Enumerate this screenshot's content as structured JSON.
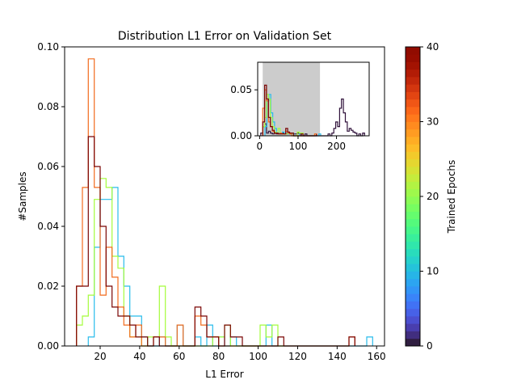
{
  "figure": {
    "background": "#ffffff"
  },
  "chart_data": [
    {
      "type": "step-histogram",
      "title": "Distribution L1 Error on Validation Set",
      "xlabel": "L1 Error",
      "ylabel": "#Samples",
      "xlim": [
        2,
        164
      ],
      "ylim": [
        0,
        0.1
      ],
      "xticks": [
        20,
        40,
        60,
        80,
        100,
        120,
        140,
        160
      ],
      "yticks": [
        0.0,
        0.02,
        0.04,
        0.06,
        0.08,
        0.1
      ],
      "ytick_labels": [
        "0.00",
        "0.02",
        "0.04",
        "0.06",
        "0.08",
        "0.10"
      ],
      "series": [
        {
          "epoch": 10,
          "color": "#28bceb",
          "edges": [
            14,
            17,
            20,
            23,
            26,
            29,
            32,
            35,
            38,
            41,
            44,
            47,
            50,
            53,
            56,
            59,
            62,
            65,
            68,
            71,
            74,
            77,
            80,
            83,
            86,
            89,
            92,
            95,
            98,
            101,
            104,
            107,
            110,
            113,
            116,
            119,
            122,
            125,
            128,
            131,
            134,
            137,
            140,
            143,
            146,
            149,
            152,
            155,
            158
          ],
          "values": [
            0.003,
            0.033,
            0.049,
            0.049,
            0.053,
            0.03,
            0.02,
            0.01,
            0.01,
            0.003,
            0,
            0,
            0.003,
            0,
            0,
            0.007,
            0,
            0,
            0.003,
            0,
            0.007,
            0,
            0.003,
            0,
            0.003,
            0,
            0,
            0,
            0,
            0,
            0.007,
            0,
            0,
            0,
            0,
            0,
            0,
            0,
            0,
            0,
            0,
            0,
            0,
            0,
            0,
            0,
            0,
            0.003
          ]
        },
        {
          "epoch": 22,
          "color": "#a4fc3b",
          "edges": [
            8,
            11,
            14,
            17,
            20,
            23,
            26,
            29,
            32,
            35,
            38,
            41,
            44,
            47,
            50,
            53,
            56,
            59,
            62,
            65,
            68,
            71,
            74,
            77,
            80,
            83,
            86,
            89,
            92,
            95,
            98,
            101,
            104,
            107,
            110,
            113
          ],
          "values": [
            0.007,
            0.01,
            0.017,
            0.049,
            0.056,
            0.053,
            0.03,
            0.026,
            0.01,
            0.003,
            0.003,
            0,
            0.003,
            0.003,
            0.02,
            0.003,
            0,
            0,
            0,
            0,
            0,
            0,
            0,
            0.003,
            0.003,
            0.007,
            0,
            0,
            0,
            0,
            0,
            0.007,
            0.003,
            0.007,
            0
          ]
        },
        {
          "epoch": 31,
          "color": "#f26b1d",
          "edges": [
            8,
            11,
            14,
            17,
            20,
            23,
            26,
            29,
            32,
            35,
            38,
            41,
            44,
            47,
            50,
            53,
            56,
            59,
            62,
            65,
            68,
            71,
            74,
            77,
            80,
            83,
            86,
            89,
            92,
            95,
            98,
            101,
            104,
            107,
            110,
            113,
            116,
            119,
            122,
            125,
            128,
            131,
            134,
            137,
            140,
            143,
            146,
            149
          ],
          "values": [
            0.02,
            0.053,
            0.096,
            0.053,
            0.017,
            0.033,
            0.023,
            0.013,
            0.007,
            0.003,
            0.007,
            0,
            0,
            0.003,
            0.003,
            0,
            0,
            0.007,
            0,
            0,
            0.01,
            0.007,
            0.003,
            0.003,
            0,
            0,
            0,
            0,
            0,
            0,
            0,
            0,
            0,
            0,
            0,
            0,
            0,
            0,
            0,
            0,
            0,
            0,
            0,
            0,
            0,
            0,
            0.003
          ]
        },
        {
          "epoch": 40,
          "color": "#7a0403",
          "edges": [
            8,
            11,
            14,
            17,
            20,
            23,
            26,
            29,
            32,
            35,
            38,
            41,
            44,
            47,
            50,
            53,
            56,
            59,
            62,
            65,
            68,
            71,
            74,
            77,
            80,
            83,
            86,
            89,
            92,
            95,
            98,
            101,
            104,
            107,
            110,
            113,
            116,
            119,
            122,
            125,
            128,
            131,
            134,
            137,
            140,
            143,
            146,
            149
          ],
          "values": [
            0.02,
            0.02,
            0.07,
            0.06,
            0.04,
            0.02,
            0.013,
            0.01,
            0.01,
            0.007,
            0.003,
            0.003,
            0,
            0.003,
            0,
            0,
            0,
            0,
            0,
            0,
            0.013,
            0.01,
            0.003,
            0.003,
            0,
            0.007,
            0.003,
            0.003,
            0,
            0,
            0,
            0,
            0,
            0,
            0.003,
            0,
            0,
            0,
            0,
            0,
            0,
            0,
            0,
            0,
            0,
            0,
            0.003
          ]
        }
      ]
    },
    {
      "type": "step-histogram",
      "role": "inset",
      "xlim": [
        -5,
        285
      ],
      "ylim": [
        0,
        0.08
      ],
      "xticks": [
        0,
        100,
        200
      ],
      "yticks": [
        0.0,
        0.05
      ],
      "ytick_labels": [
        "0.00",
        "0.05"
      ],
      "highlight_span": [
        8,
        157
      ],
      "highlight_color": "#cccccc",
      "series": [
        {
          "epoch": 1,
          "color": "#30123b",
          "edges": [
            3,
            8,
            13,
            18,
            23,
            28,
            33,
            38,
            43,
            48,
            53,
            58,
            63,
            68,
            73,
            78,
            83,
            88,
            93,
            98,
            103,
            108,
            113,
            118,
            123,
            128,
            133,
            138,
            143,
            148,
            153,
            158,
            163,
            168,
            173,
            178,
            183,
            188,
            193,
            198,
            203,
            208,
            213,
            218,
            223,
            228,
            233,
            238,
            243,
            248,
            253,
            258,
            263,
            268,
            273
          ],
          "values": [
            0.003,
            0.01,
            0.013,
            0.003,
            0.005,
            0.003,
            0.002,
            0.003,
            0.002,
            0.003,
            0.002,
            0.003,
            0.002,
            0.002,
            0.003,
            0.002,
            0.003,
            0.002,
            0.002,
            0.003,
            0.002,
            0,
            0,
            0.002,
            0,
            0,
            0,
            0,
            0,
            0,
            0,
            0,
            0,
            0,
            0,
            0.002,
            0,
            0.003,
            0.008,
            0.015,
            0.01,
            0.03,
            0.04,
            0.025,
            0.015,
            0.005,
            0.008,
            0.006,
            0.004,
            0.003,
            0,
            0.002,
            0,
            0.003
          ]
        },
        {
          "epoch": 10,
          "color": "#28bceb",
          "edges": [
            14,
            19,
            24,
            29,
            34,
            39,
            44,
            49,
            54,
            59,
            64,
            69,
            74,
            79,
            84,
            89,
            94,
            99,
            104,
            109,
            114,
            119,
            124,
            129,
            134,
            139,
            144,
            149,
            154,
            159
          ],
          "values": [
            0.01,
            0.038,
            0.045,
            0.025,
            0.015,
            0.008,
            0.003,
            0.003,
            0.002,
            0.004,
            0.002,
            0.003,
            0.002,
            0.002,
            0.003,
            0,
            0,
            0,
            0.003,
            0,
            0,
            0,
            0,
            0,
            0,
            0,
            0,
            0,
            0.002
          ]
        },
        {
          "epoch": 22,
          "color": "#a4fc3b",
          "edges": [
            8,
            13,
            18,
            23,
            28,
            33,
            38,
            43,
            48,
            53,
            58,
            63,
            68,
            73,
            78,
            83,
            88,
            93,
            98,
            103,
            108,
            113
          ],
          "values": [
            0.01,
            0.02,
            0.045,
            0.04,
            0.02,
            0.01,
            0.004,
            0.003,
            0.008,
            0.003,
            0.002,
            0.002,
            0.002,
            0.003,
            0.003,
            0.003,
            0,
            0,
            0.004,
            0.003,
            0.003
          ]
        },
        {
          "epoch": 31,
          "color": "#f26b1d",
          "edges": [
            8,
            13,
            18,
            23,
            28,
            33,
            38,
            43,
            48,
            53,
            58,
            63,
            68,
            73,
            78,
            83,
            88,
            93,
            98,
            103,
            108,
            113,
            118,
            123,
            128,
            133,
            138,
            143,
            148
          ],
          "values": [
            0.03,
            0.05,
            0.038,
            0.015,
            0.01,
            0.005,
            0.003,
            0.003,
            0.002,
            0.003,
            0.002,
            0.002,
            0.005,
            0.003,
            0.002,
            0,
            0,
            0,
            0,
            0,
            0,
            0,
            0,
            0,
            0,
            0,
            0,
            0.002
          ]
        },
        {
          "epoch": 40,
          "color": "#7a0403",
          "edges": [
            8,
            13,
            18,
            23,
            28,
            33,
            38,
            43,
            48,
            53,
            58,
            63,
            68,
            73,
            78,
            83,
            88,
            93,
            98,
            103,
            108,
            113,
            118,
            123,
            128,
            133,
            138,
            143,
            148
          ],
          "values": [
            0.015,
            0.055,
            0.04,
            0.02,
            0.01,
            0.006,
            0.003,
            0.003,
            0.002,
            0.002,
            0.002,
            0.002,
            0.008,
            0.004,
            0.003,
            0.003,
            0,
            0,
            0,
            0,
            0.002,
            0,
            0,
            0,
            0,
            0,
            0,
            0,
            0.002
          ]
        }
      ]
    }
  ],
  "colorbar": {
    "label": "Trained Epochs",
    "range": [
      0,
      40
    ],
    "ticks": [
      0,
      10,
      20,
      30,
      40
    ],
    "colormap": "turbo",
    "steps": 40
  }
}
